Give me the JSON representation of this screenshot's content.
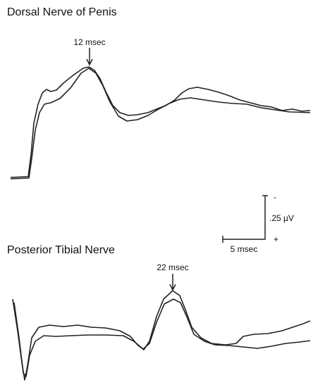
{
  "panels": [
    {
      "title": "Dorsal Nerve of Penis",
      "annotation": "12 msec"
    },
    {
      "title": "Posterior Tibial Nerve",
      "annotation": "22 msec"
    }
  ],
  "scale_bar": {
    "top_sign": "-",
    "amplitude": ".25 µV",
    "bottom_sign": "+",
    "time": "5 msec"
  }
}
